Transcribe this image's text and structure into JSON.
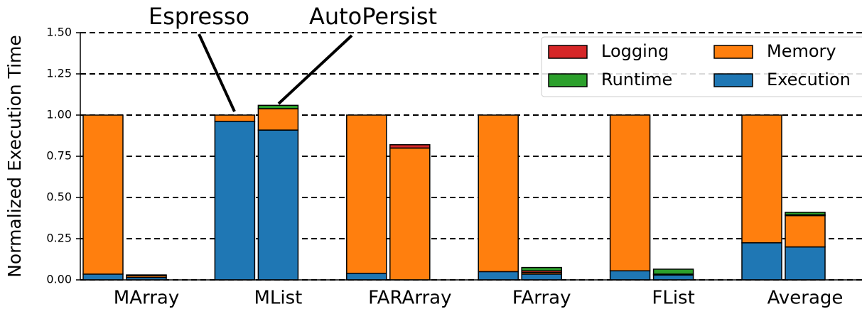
{
  "chart_data": {
    "type": "grouped_stacked_bar",
    "ylabel": "Normalized Execution Time",
    "categories": [
      "MArray",
      "MList",
      "FARArray",
      "FArray",
      "FList",
      "Average"
    ],
    "groups": [
      "Espresso",
      "AutoPersist"
    ],
    "series": [
      {
        "name": "Execution",
        "color": "#1f77b4",
        "values": [
          [
            0.035,
            0.015
          ],
          [
            0.962,
            0.909
          ],
          [
            0.04,
            0.0
          ],
          [
            0.05,
            0.035
          ],
          [
            0.055,
            0.03
          ],
          [
            0.225,
            0.2
          ]
        ]
      },
      {
        "name": "Memory",
        "color": "#ff7f0e",
        "values": [
          [
            0.965,
            0.01
          ],
          [
            0.038,
            0.13
          ],
          [
            0.96,
            0.8
          ],
          [
            0.95,
            0.01
          ],
          [
            0.945,
            0.005
          ],
          [
            0.775,
            0.19
          ]
        ]
      },
      {
        "name": "Logging",
        "color": "#d62728",
        "values": [
          [
            0,
            0
          ],
          [
            0,
            0
          ],
          [
            0,
            0.02
          ],
          [
            0,
            0.01
          ],
          [
            0,
            0
          ],
          [
            0,
            0.005
          ]
        ]
      },
      {
        "name": "Runtime",
        "color": "#2ca02c",
        "values": [
          [
            0,
            0.005
          ],
          [
            0,
            0.02
          ],
          [
            0,
            0
          ],
          [
            0,
            0.02
          ],
          [
            0,
            0.03
          ],
          [
            0,
            0.015
          ]
        ]
      }
    ],
    "ylim": [
      0,
      1.5
    ],
    "yticks": [
      {
        "value": 0,
        "label": "0.00"
      },
      {
        "value": 0.25,
        "label": "0.25"
      },
      {
        "value": 0.5,
        "label": "0.50"
      },
      {
        "value": 0.75,
        "label": "0.75"
      },
      {
        "value": 1.0,
        "label": "1.00"
      },
      {
        "value": 1.25,
        "label": "1.25"
      },
      {
        "value": 1.5,
        "label": "1.50"
      }
    ],
    "grid": true,
    "legend": "upper right"
  }
}
